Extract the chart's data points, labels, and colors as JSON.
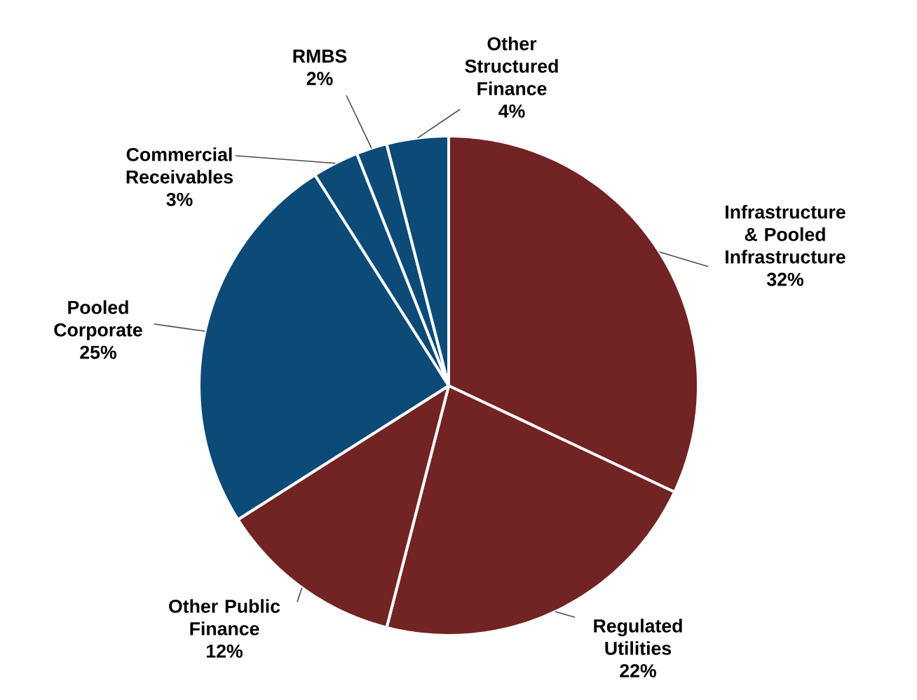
{
  "chart_data": {
    "type": "pie",
    "categories": [
      "Infrastructure & Pooled Infrastructure",
      "Regulated Utilities",
      "Other Public Finance",
      "Pooled Corporate",
      "Commercial Receivables",
      "RMBS",
      "Other Structured Finance"
    ],
    "values": [
      32,
      22,
      12,
      25,
      3,
      2,
      4
    ],
    "value_labels": [
      "32%",
      "22%",
      "12%",
      "25%",
      "3%",
      "2%",
      "4%"
    ],
    "colors": [
      "#722324",
      "#722324",
      "#722324",
      "#0c4a78",
      "#0c4a78",
      "#0c4a78",
      "#0c4a78"
    ]
  }
}
